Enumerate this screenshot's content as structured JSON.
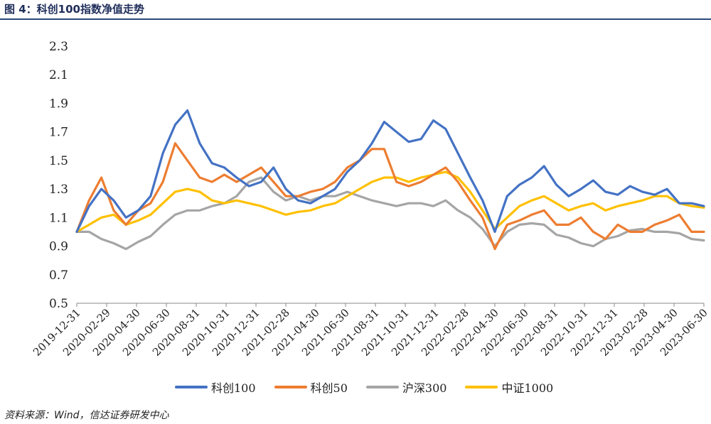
{
  "figure": {
    "title": "图 4：科创100指数净值走势",
    "source": "资料来源：Wind，信达证券研发中心"
  },
  "chart_data": {
    "type": "line",
    "title": "",
    "xlabel": "",
    "ylabel": "",
    "ylim": [
      0.5,
      2.3
    ],
    "yticks": [
      0.5,
      0.7,
      0.9,
      1.1,
      1.3,
      1.5,
      1.7,
      1.9,
      2.1,
      2.3
    ],
    "xticks": [
      "2019-12-31",
      "2020-02-29",
      "2020-04-30",
      "2020-06-30",
      "2020-08-31",
      "2020-10-31",
      "2020-12-31",
      "2021-02-28",
      "2021-04-30",
      "2021-06-30",
      "2021-08-31",
      "2021-10-31",
      "2021-12-31",
      "2022-02-28",
      "2022-04-30",
      "2022-06-30",
      "2022-08-31",
      "2022-10-31",
      "2022-12-31",
      "2023-02-28",
      "2023-04-30",
      "2023-06-30"
    ],
    "grid": false,
    "legend_position": "bottom",
    "series": [
      {
        "name": "科创100",
        "color": "#4472C4",
        "values": [
          1.0,
          1.18,
          1.3,
          1.22,
          1.1,
          1.15,
          1.25,
          1.55,
          1.75,
          1.85,
          1.62,
          1.48,
          1.45,
          1.38,
          1.32,
          1.35,
          1.45,
          1.3,
          1.22,
          1.2,
          1.25,
          1.3,
          1.42,
          1.5,
          1.62,
          1.77,
          1.7,
          1.63,
          1.65,
          1.78,
          1.72,
          1.55,
          1.38,
          1.22,
          1.0,
          1.25,
          1.33,
          1.38,
          1.46,
          1.33,
          1.25,
          1.3,
          1.36,
          1.28,
          1.26,
          1.32,
          1.28,
          1.26,
          1.3,
          1.2,
          1.2,
          1.18
        ]
      },
      {
        "name": "科创50",
        "color": "#ED7D31",
        "values": [
          1.0,
          1.22,
          1.38,
          1.15,
          1.05,
          1.15,
          1.2,
          1.35,
          1.62,
          1.5,
          1.38,
          1.35,
          1.4,
          1.35,
          1.4,
          1.45,
          1.35,
          1.25,
          1.25,
          1.28,
          1.3,
          1.35,
          1.45,
          1.5,
          1.58,
          1.58,
          1.35,
          1.32,
          1.35,
          1.4,
          1.45,
          1.35,
          1.22,
          1.1,
          0.88,
          1.05,
          1.08,
          1.12,
          1.15,
          1.05,
          1.05,
          1.1,
          1.0,
          0.95,
          1.05,
          1.0,
          1.0,
          1.05,
          1.08,
          1.12,
          1.0,
          1.0
        ]
      },
      {
        "name": "沪深300",
        "color": "#A5A5A5",
        "values": [
          1.0,
          1.0,
          0.95,
          0.92,
          0.88,
          0.93,
          0.97,
          1.05,
          1.12,
          1.15,
          1.15,
          1.18,
          1.2,
          1.25,
          1.35,
          1.38,
          1.28,
          1.22,
          1.25,
          1.22,
          1.25,
          1.25,
          1.28,
          1.25,
          1.22,
          1.2,
          1.18,
          1.2,
          1.2,
          1.18,
          1.22,
          1.15,
          1.1,
          1.02,
          0.9,
          1.0,
          1.05,
          1.06,
          1.05,
          0.98,
          0.96,
          0.92,
          0.9,
          0.95,
          0.97,
          1.01,
          1.02,
          1.0,
          1.0,
          0.99,
          0.95,
          0.94
        ]
      },
      {
        "name": "中证1000",
        "color": "#FFC000",
        "values": [
          1.0,
          1.05,
          1.1,
          1.12,
          1.05,
          1.08,
          1.12,
          1.2,
          1.28,
          1.3,
          1.28,
          1.22,
          1.2,
          1.22,
          1.2,
          1.18,
          1.15,
          1.12,
          1.14,
          1.15,
          1.18,
          1.2,
          1.25,
          1.3,
          1.35,
          1.38,
          1.38,
          1.35,
          1.38,
          1.4,
          1.42,
          1.38,
          1.28,
          1.15,
          1.02,
          1.1,
          1.18,
          1.22,
          1.25,
          1.2,
          1.15,
          1.18,
          1.2,
          1.15,
          1.18,
          1.2,
          1.22,
          1.25,
          1.25,
          1.2,
          1.18,
          1.17
        ]
      }
    ]
  }
}
